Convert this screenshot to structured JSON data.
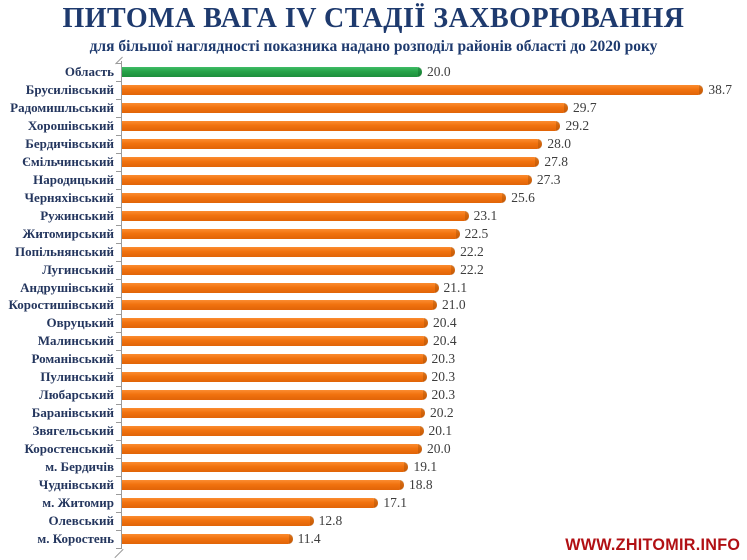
{
  "header": {
    "title": "ПИТОМА ВАГА IV СТАДІЇ ЗАХВОРЮВАННЯ",
    "subtitle": "для більшої наглядності показника  надано розподіл районів області до 2020 року"
  },
  "chart_data": {
    "type": "bar",
    "orientation": "horizontal",
    "title": "ПИТОМА ВАГА IV СТАДІЇ ЗАХВОРЮВАННЯ",
    "subtitle": "для більшої наглядності показника надано розподіл районів області до 2020 року",
    "xlim": [
      0,
      40
    ],
    "grid": false,
    "legend": false,
    "value_labels_shown": true,
    "highlight_index": 0,
    "bar_color": "#f1720e",
    "highlight_color": "#27a348",
    "categories": [
      "Область",
      "Брусилівський",
      "Радомишльський",
      "Хорошівський",
      "Бердичівський",
      "Ємільчинський",
      "Народицький",
      "Черняхівський",
      "Ружинський",
      "Житомирський",
      "Попільнянський",
      "Лугинський",
      "Андрушівський",
      "Коростишівський",
      "Овруцький",
      "Малинський",
      "Романівський",
      "Пулинський",
      "Любарський",
      "Баранівський",
      "Звягельський",
      "Коростенський",
      "м. Бердичів",
      "Чуднівський",
      "м. Житомир",
      "Олевський",
      "м. Коростень"
    ],
    "values": [
      20.0,
      38.7,
      29.7,
      29.2,
      28.0,
      27.8,
      27.3,
      25.6,
      23.1,
      22.5,
      22.2,
      22.2,
      21.1,
      21.0,
      20.4,
      20.4,
      20.3,
      20.3,
      20.3,
      20.2,
      20.1,
      20.0,
      19.1,
      18.8,
      17.1,
      12.8,
      11.4
    ],
    "value_labels": [
      "20.0",
      "38.7",
      "29.7",
      "29.2",
      "28.0",
      "27.8",
      "27.3",
      "25.6",
      "23.1",
      "22.5",
      "22.2",
      "22.2",
      "21.1",
      "21.0",
      "20.4",
      "20.4",
      "20.3",
      "20.3",
      "20.3",
      "20.2",
      "20.1",
      "20.0",
      "19.1",
      "18.8",
      "17.1",
      "12.8",
      "11.4"
    ]
  },
  "watermark": {
    "text": "WWW.ZHITOMIR.INFO",
    "color": "#b11014"
  },
  "colors": {
    "title": "#1e3a6e",
    "category_label": "#24365e",
    "value_label": "#3d3d3d",
    "axis": "#9a9a9a",
    "background": "#ffffff"
  }
}
